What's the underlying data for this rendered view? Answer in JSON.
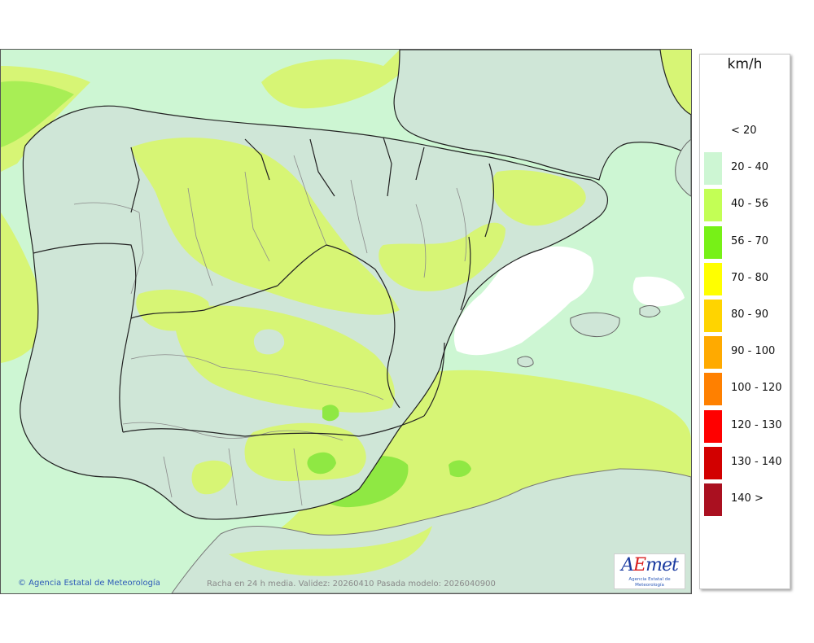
{
  "map": {
    "credit": "© Agencia Estatal de Meteorología",
    "caption": "Racha en 24 h media. Validez: 20260410 Pasada modelo: 2026040900",
    "logo": {
      "text": "AEmet",
      "org": "Agencia Estatal de Meteorología"
    }
  },
  "legend": {
    "unit": "km/h",
    "items": [
      {
        "label": "< 20",
        "color": "#ffffff"
      },
      {
        "label": "20 - 40",
        "color": "#cdf6d3"
      },
      {
        "label": "40 - 56",
        "color": "#c3ff55"
      },
      {
        "label": "56 - 70",
        "color": "#77f117"
      },
      {
        "label": "70 - 80",
        "color": "#ffff00"
      },
      {
        "label": "80 - 90",
        "color": "#ffd400"
      },
      {
        "label": "90 - 100",
        "color": "#ffaa00"
      },
      {
        "label": "100 - 120",
        "color": "#ff8000"
      },
      {
        "label": "120 - 130",
        "color": "#ff0000"
      },
      {
        "label": "130 - 140",
        "color": "#d20000"
      },
      {
        "label": "140 >",
        "color": "#aa1020"
      }
    ]
  },
  "colors": {
    "sea_20_40": "#cdf6d3",
    "land_20_40": "#cfe6d7",
    "band_40_56": "#d7f575",
    "band_56_70": "#8fe843",
    "band_70_80": "#ffff40",
    "calm": "#ffffff",
    "border": "#222222",
    "province_border": "#8b8b8b"
  }
}
